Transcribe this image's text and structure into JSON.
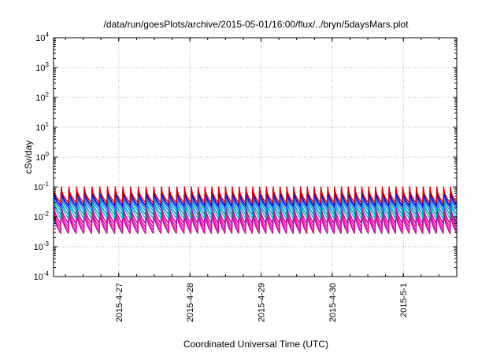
{
  "chart_data": {
    "type": "line",
    "title": "/data/run/goesPlots/archive/2015-05-01/16:00/flux/../bryn/5daysMars.plot",
    "xlabel": "Coordinated Universal Time (UTC)",
    "ylabel": "cSv/day",
    "yscale": "log",
    "ylim": [
      0.0001,
      10000
    ],
    "y_ticks": [
      {
        "base": "10",
        "exp": "-4",
        "value": 0.0001
      },
      {
        "base": "10",
        "exp": "-3",
        "value": 0.001
      },
      {
        "base": "10",
        "exp": "-2",
        "value": 0.01
      },
      {
        "base": "10",
        "exp": "-1",
        "value": 0.1
      },
      {
        "base": "10",
        "exp": "0",
        "value": 1
      },
      {
        "base": "10",
        "exp": "1",
        "value": 10
      },
      {
        "base": "10",
        "exp": "2",
        "value": 100
      },
      {
        "base": "10",
        "exp": "3",
        "value": 1000
      },
      {
        "base": "10",
        "exp": "4",
        "value": 10000
      }
    ],
    "xlim": [
      "2015-04-26 02:00",
      "2015-05-01 18:00"
    ],
    "x_ticks": [
      "2015-4-27",
      "2015-4-28",
      "2015-4-29",
      "2015-4-30",
      "2015-5-1"
    ],
    "grid": true,
    "legend": "none",
    "sawtooth": {
      "period_hours": 2.3,
      "early_period_hours": 2.6
    },
    "series": [
      {
        "color": "#ff00ff",
        "peak": 0.018,
        "trough": 0.0035
      },
      {
        "color": "#e0188a",
        "peak": 0.022,
        "trough": 0.0045
      },
      {
        "color": "#c01080",
        "peak": 0.016,
        "trough": 0.0028
      },
      {
        "color": "#b000b0",
        "peak": 0.028,
        "trough": 0.006
      },
      {
        "color": "#00c8c8",
        "peak": 0.038,
        "trough": 0.009
      },
      {
        "color": "#00a0a0",
        "peak": 0.045,
        "trough": 0.012
      },
      {
        "color": "#1e90ff",
        "peak": 0.06,
        "trough": 0.016
      },
      {
        "color": "#4040ff",
        "peak": 0.075,
        "trough": 0.02
      },
      {
        "color": "#0000c0",
        "peak": 0.085,
        "trough": 0.024
      },
      {
        "color": "#e00000",
        "peak": 0.1,
        "trough": 0.03
      }
    ]
  }
}
